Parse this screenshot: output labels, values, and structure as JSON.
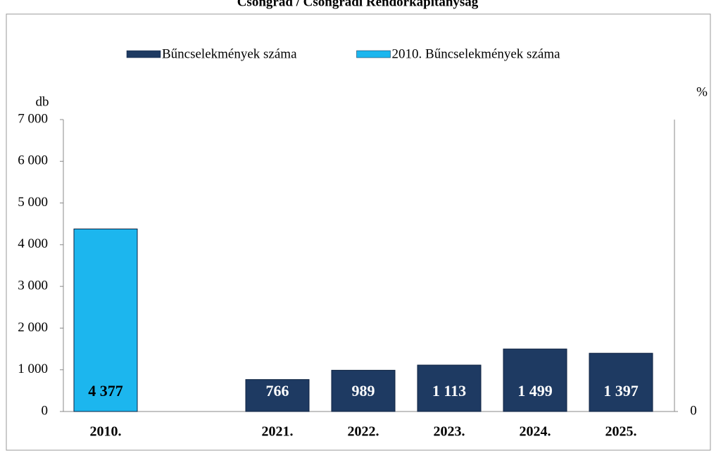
{
  "chart_data": {
    "type": "bar",
    "title": "Csongrád / Csongrádi Rendőrkapitányság",
    "y_label": "db",
    "y2_label": "%",
    "categories": [
      "2010.",
      null,
      "2021.",
      "2022.",
      "2023.",
      "2024.",
      "2025."
    ],
    "series": [
      {
        "name": "Bűncselekmények száma",
        "color": "#1e3a62",
        "values": [
          null,
          null,
          766,
          989,
          1113,
          1499,
          1397
        ],
        "value_labels": [
          null,
          null,
          "766",
          "989",
          "1 113",
          "1 499",
          "1 397"
        ]
      },
      {
        "name": "2010. Bűncselekmények száma",
        "color": "#1cb6ee",
        "values": [
          4377,
          null,
          null,
          null,
          null,
          null,
          null
        ],
        "value_labels": [
          "4 377",
          null,
          null,
          null,
          null,
          null,
          null
        ]
      }
    ],
    "ylim": [
      0,
      7000
    ],
    "yticks": [
      0,
      {
        "value": 1000,
        "label": "1 000"
      },
      {
        "value": 2000,
        "label": "2 000"
      },
      {
        "value": 3000,
        "label": "3 000"
      },
      {
        "value": 4000,
        "label": "4 000"
      },
      {
        "value": 5000,
        "label": "5 000"
      },
      {
        "value": 6000,
        "label": "6 000"
      },
      {
        "value": 7000,
        "label": "7 000"
      }
    ],
    "y2ticks": [
      0
    ],
    "legend": "top"
  }
}
